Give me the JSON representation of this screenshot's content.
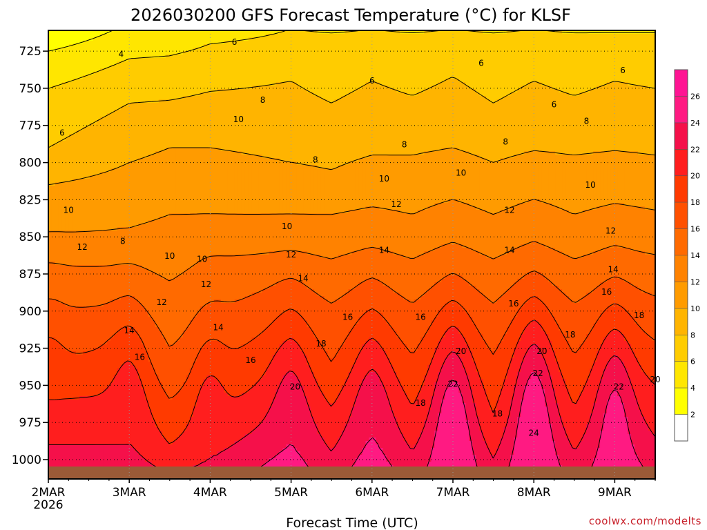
{
  "chart_data": {
    "type": "contour",
    "title": "2026030200 GFS Forecast Temperature (°C) for KLSF",
    "xlabel": "Forecast Time (UTC)",
    "ylabel": "",
    "credit": "coolwx.com/modelts",
    "x_ticks": [
      "2MAR",
      "3MAR",
      "4MAR",
      "5MAR",
      "6MAR",
      "7MAR",
      "8MAR",
      "9MAR"
    ],
    "x_tick_year": "2026",
    "xlim": [
      0,
      7.5
    ],
    "y_ticks": [
      725,
      750,
      775,
      800,
      825,
      850,
      875,
      900,
      925,
      950,
      975,
      1000
    ],
    "ylim": [
      1013,
      711
    ],
    "colorbar": {
      "levels": [
        2,
        4,
        6,
        8,
        10,
        12,
        14,
        16,
        18,
        20,
        22,
        24,
        26
      ],
      "labels": [
        "2",
        "4",
        "6",
        "8",
        "10",
        "12",
        "14",
        "16",
        "18",
        "20",
        "22",
        "24",
        "26"
      ],
      "colors": [
        "#ffffff",
        "#ffff00",
        "#ffe600",
        "#ffcc00",
        "#ffb400",
        "#ff9b00",
        "#ff8200",
        "#ff6a00",
        "#ff5000",
        "#ff3a00",
        "#ff1e1e",
        "#f5104a",
        "#ff1a82",
        "#ff1493"
      ]
    },
    "columns": [
      {
        "x": 0.0,
        "p_levels": [
          710,
          725,
          750,
          790,
          815,
          848,
          870,
          900,
          935,
          960,
          990
        ],
        "vals": [
          2,
          4,
          6,
          8,
          10,
          12,
          14,
          16,
          18,
          20,
          22
        ]
      },
      {
        "x": 1.0,
        "p_levels": [
          690,
          705,
          730,
          760,
          800,
          845,
          870,
          895,
          920,
          955,
          990
        ],
        "vals": [
          2,
          4,
          6,
          8,
          10,
          12,
          14,
          16,
          18,
          20,
          22
        ]
      },
      {
        "x": 1.5,
        "p_levels": [
          690,
          705,
          728,
          758,
          790,
          835,
          880,
          925,
          960,
          990,
          1010
        ],
        "vals": [
          2,
          4,
          6,
          8,
          10,
          12,
          14,
          16,
          18,
          20,
          22
        ]
      },
      {
        "x": 2.0,
        "p_levels": [
          690,
          702,
          720,
          752,
          790,
          835,
          865,
          905,
          945,
          975,
          1000
        ],
        "vals": [
          2,
          4,
          6,
          8,
          10,
          12,
          14,
          16,
          18,
          20,
          22
        ]
      },
      {
        "x": 3.0,
        "p_levels": [
          690,
          700,
          710,
          745,
          800,
          835,
          860,
          880,
          905,
          930,
          960
        ],
        "vals": [
          2,
          4,
          6,
          8,
          10,
          12,
          14,
          16,
          18,
          20,
          22
        ]
      },
      {
        "x": 3.5,
        "p_levels": [
          690,
          700,
          712,
          760,
          805,
          835,
          865,
          895,
          935,
          965,
          995
        ],
        "vals": [
          2,
          4,
          6,
          8,
          10,
          12,
          14,
          16,
          18,
          20,
          22
        ]
      },
      {
        "x": 4.0,
        "p_levels": [
          690,
          700,
          710,
          745,
          795,
          830,
          858,
          880,
          905,
          930,
          955
        ],
        "vals": [
          2,
          4,
          6,
          8,
          10,
          12,
          14,
          16,
          18,
          20,
          22
        ]
      },
      {
        "x": 4.5,
        "p_levels": [
          690,
          700,
          712,
          755,
          795,
          835,
          865,
          895,
          930,
          965,
          995
        ],
        "vals": [
          2,
          4,
          6,
          8,
          10,
          12,
          14,
          16,
          18,
          20,
          22
        ]
      },
      {
        "x": 5.0,
        "p_levels": [
          690,
          700,
          710,
          742,
          790,
          825,
          855,
          878,
          900,
          925,
          950
        ],
        "vals": [
          2,
          4,
          6,
          8,
          10,
          12,
          14,
          16,
          18,
          20,
          22
        ]
      },
      {
        "x": 5.5,
        "p_levels": [
          690,
          700,
          712,
          760,
          800,
          835,
          865,
          895,
          930,
          970,
          1000
        ],
        "vals": [
          2,
          4,
          6,
          8,
          10,
          12,
          14,
          16,
          18,
          20,
          22
        ]
      },
      {
        "x": 6.0,
        "p_levels": [
          690,
          700,
          710,
          745,
          792,
          825,
          855,
          877,
          898,
          920,
          945
        ],
        "vals": [
          2,
          4,
          6,
          8,
          10,
          12,
          14,
          16,
          18,
          20,
          22
        ]
      },
      {
        "x": 6.5,
        "p_levels": [
          690,
          700,
          712,
          755,
          795,
          835,
          865,
          895,
          930,
          965,
          995
        ],
        "vals": [
          2,
          4,
          6,
          8,
          10,
          12,
          14,
          16,
          18,
          20,
          22
        ]
      },
      {
        "x": 7.0,
        "p_levels": [
          690,
          700,
          712,
          745,
          792,
          828,
          858,
          882,
          905,
          930,
          955
        ],
        "vals": [
          2,
          4,
          6,
          8,
          10,
          12,
          14,
          16,
          18,
          20,
          22
        ]
      },
      {
        "x": 7.5,
        "p_levels": [
          690,
          700,
          712,
          750,
          795,
          832,
          862,
          890,
          920,
          950,
          985
        ],
        "vals": [
          2,
          4,
          6,
          8,
          10,
          12,
          14,
          16,
          18,
          20,
          22
        ]
      }
    ],
    "warm_cores": [
      {
        "x": 0.0,
        "p": 985,
        "peak": 20
      },
      {
        "x": 1.0,
        "p": 995,
        "peak": 22
      },
      {
        "x": 2.0,
        "p": 995,
        "peak": 22
      },
      {
        "x": 3.0,
        "p": 1000,
        "peak": 24
      },
      {
        "x": 4.0,
        "p": 1000,
        "peak": 24
      },
      {
        "x": 5.0,
        "p": 995,
        "peak": 26
      },
      {
        "x": 6.0,
        "p": 990,
        "peak": 26
      },
      {
        "x": 7.0,
        "p": 990,
        "peak": 25
      }
    ],
    "contour_labels": [
      {
        "text": "4",
        "x": 0.9,
        "p": 727
      },
      {
        "text": "6",
        "x": 2.3,
        "p": 719
      },
      {
        "text": "6",
        "x": 0.17,
        "p": 780
      },
      {
        "text": "6",
        "x": 4.0,
        "p": 745
      },
      {
        "text": "6",
        "x": 5.35,
        "p": 733
      },
      {
        "text": "6",
        "x": 6.25,
        "p": 761
      },
      {
        "text": "6",
        "x": 7.1,
        "p": 738
      },
      {
        "text": "8",
        "x": 2.65,
        "p": 758
      },
      {
        "text": "8",
        "x": 3.3,
        "p": 798
      },
      {
        "text": "8",
        "x": 4.4,
        "p": 788
      },
      {
        "text": "8",
        "x": 5.65,
        "p": 786
      },
      {
        "text": "8",
        "x": 6.65,
        "p": 772
      },
      {
        "text": "10",
        "x": 0.25,
        "p": 832
      },
      {
        "text": "10",
        "x": 2.35,
        "p": 771
      },
      {
        "text": "10",
        "x": 1.5,
        "p": 863
      },
      {
        "text": "10",
        "x": 1.9,
        "p": 865
      },
      {
        "text": "10",
        "x": 2.95,
        "p": 843
      },
      {
        "text": "10",
        "x": 4.15,
        "p": 811
      },
      {
        "text": "10",
        "x": 5.1,
        "p": 807
      },
      {
        "text": "10",
        "x": 6.7,
        "p": 815
      },
      {
        "text": "8",
        "x": 0.92,
        "p": 853
      },
      {
        "text": "12",
        "x": 0.42,
        "p": 857
      },
      {
        "text": "12",
        "x": 1.4,
        "p": 894
      },
      {
        "text": "12",
        "x": 1.95,
        "p": 882
      },
      {
        "text": "12",
        "x": 3.0,
        "p": 862
      },
      {
        "text": "12",
        "x": 4.3,
        "p": 828
      },
      {
        "text": "12",
        "x": 5.7,
        "p": 832
      },
      {
        "text": "12",
        "x": 6.95,
        "p": 846
      },
      {
        "text": "14",
        "x": 1.0,
        "p": 913
      },
      {
        "text": "14",
        "x": 2.1,
        "p": 911
      },
      {
        "text": "14",
        "x": 3.15,
        "p": 878
      },
      {
        "text": "14",
        "x": 4.15,
        "p": 859
      },
      {
        "text": "14",
        "x": 5.7,
        "p": 859
      },
      {
        "text": "14",
        "x": 6.98,
        "p": 872
      },
      {
        "text": "16",
        "x": 1.13,
        "p": 931
      },
      {
        "text": "16",
        "x": 2.5,
        "p": 933
      },
      {
        "text": "16",
        "x": 3.7,
        "p": 904
      },
      {
        "text": "16",
        "x": 4.6,
        "p": 904
      },
      {
        "text": "16",
        "x": 5.75,
        "p": 895
      },
      {
        "text": "16",
        "x": 6.9,
        "p": 887
      },
      {
        "text": "18",
        "x": 3.37,
        "p": 922
      },
      {
        "text": "18",
        "x": 4.6,
        "p": 962
      },
      {
        "text": "18",
        "x": 5.55,
        "p": 969
      },
      {
        "text": "18",
        "x": 6.45,
        "p": 916
      },
      {
        "text": "18",
        "x": 7.3,
        "p": 903
      },
      {
        "text": "20",
        "x": 3.05,
        "p": 951
      },
      {
        "text": "20",
        "x": 5.1,
        "p": 927
      },
      {
        "text": "20",
        "x": 6.1,
        "p": 927
      },
      {
        "text": "20",
        "x": 7.5,
        "p": 946
      },
      {
        "text": "22",
        "x": 5.0,
        "p": 949
      },
      {
        "text": "22",
        "x": 6.05,
        "p": 942
      },
      {
        "text": "22",
        "x": 7.05,
        "p": 951
      },
      {
        "text": "24",
        "x": 6.0,
        "p": 982
      }
    ]
  }
}
